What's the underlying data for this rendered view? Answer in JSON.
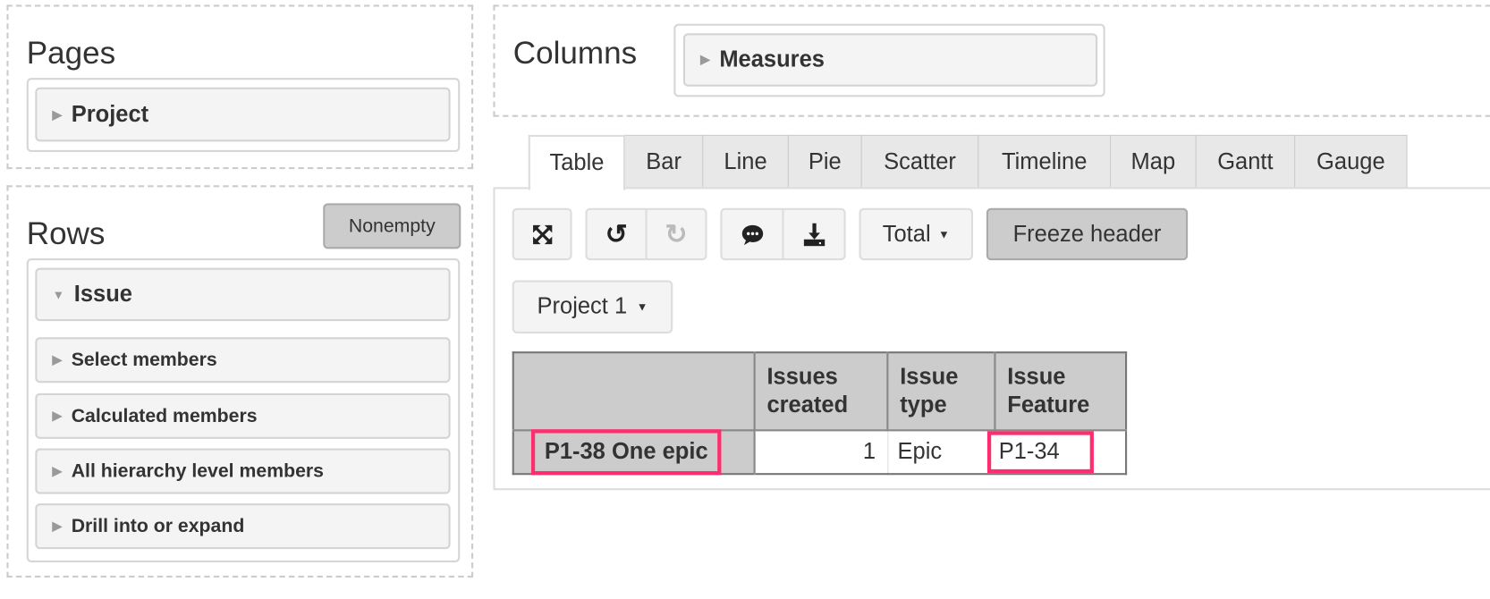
{
  "pages": {
    "title": "Pages",
    "items": [
      {
        "label": "Project"
      }
    ]
  },
  "rows": {
    "title": "Rows",
    "nonempty_label": "Nonempty",
    "dimension": "Issue",
    "actions": [
      {
        "label": "Select members"
      },
      {
        "label": "Calculated members"
      },
      {
        "label": "All hierarchy level members"
      },
      {
        "label": "Drill into or expand"
      }
    ]
  },
  "columns": {
    "title": "Columns",
    "items": [
      {
        "label": "Measures"
      }
    ]
  },
  "tabs": [
    {
      "label": "Table",
      "active": true
    },
    {
      "label": "Bar"
    },
    {
      "label": "Line"
    },
    {
      "label": "Pie"
    },
    {
      "label": "Scatter"
    },
    {
      "label": "Timeline"
    },
    {
      "label": "Map"
    },
    {
      "label": "Gantt"
    },
    {
      "label": "Gauge"
    }
  ],
  "toolbar": {
    "fullscreen_icon": "expand-arrows-icon",
    "undo_icon": "undo-icon",
    "redo_icon": "redo-icon",
    "comment_icon": "comment-icon",
    "download_icon": "download-icon",
    "total_label": "Total",
    "freeze_label": "Freeze header"
  },
  "page_filter": {
    "selected": "Project 1"
  },
  "table": {
    "headers": [
      "Issues created",
      "Issue type",
      "Issue Feature"
    ],
    "header_lines": [
      [
        "Issues",
        "created"
      ],
      [
        "Issue",
        "type"
      ],
      [
        "Issue",
        "Feature"
      ]
    ],
    "rows": [
      {
        "label": "P1-38 One epic",
        "cells": [
          "1",
          "Epic",
          "P1-34"
        ]
      }
    ]
  },
  "colors": {
    "highlight": "#ff2d6f",
    "header_bg": "#cccccc",
    "button_bg": "#f4f4f4"
  }
}
